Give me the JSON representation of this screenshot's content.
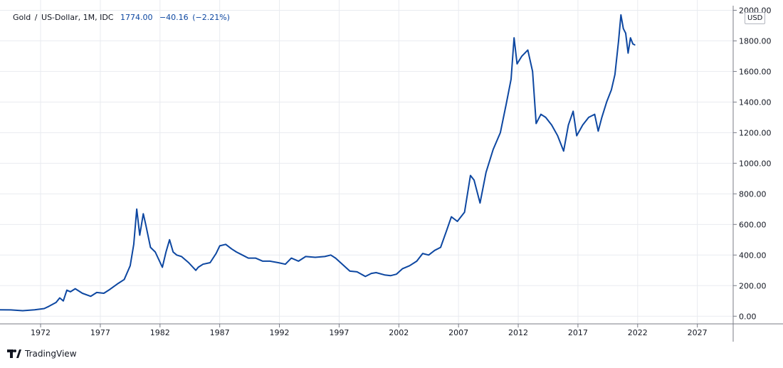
{
  "legend": {
    "symbol": "Gold",
    "separator": "/",
    "description": "US-Dollar, 1M, IDC",
    "last_price": "1774.00",
    "change": "−40.16",
    "change_pct": "(−2.21%)"
  },
  "currency_badge": "USD",
  "brand": {
    "name": "TradingView",
    "logo_icon": "tradingview-logo-icon"
  },
  "colors": {
    "line": "#0d47a1",
    "grid": "#e9ebf0",
    "text": "#131722",
    "axis": "#787b86"
  },
  "chart_data": {
    "type": "line",
    "title": "",
    "xlabel": "",
    "ylabel": "",
    "y_unit": "USD",
    "xlim": [
      1968.6,
      2030.0
    ],
    "ylim": [
      -50,
      2030
    ],
    "x_ticks": [
      1972,
      1977,
      1982,
      1987,
      1992,
      1997,
      2002,
      2007,
      2012,
      2017,
      2022,
      2027
    ],
    "x_tick_labels": [
      "1972",
      "1977",
      "1982",
      "1987",
      "1992",
      "1997",
      "2002",
      "2007",
      "2012",
      "2017",
      "2022",
      "2027"
    ],
    "y_ticks": [
      0,
      200,
      400,
      600,
      800,
      1000,
      1200,
      1400,
      1600,
      1800,
      2000
    ],
    "y_tick_labels": [
      "0.00",
      "200.00",
      "400.00",
      "600.00",
      "800.00",
      "1000.00",
      "1200.00",
      "1400.00",
      "1600.00",
      "1800.00",
      "2000.00"
    ],
    "grid": true,
    "series": [
      {
        "x": [
          1968.6,
          1969.5,
          1970.5,
          1971.5,
          1972.3,
          1972.7,
          1973.3,
          1973.6,
          1973.9,
          1974.2,
          1974.5,
          1974.9,
          1975.5,
          1976.2,
          1976.7,
          1977.3,
          1977.8,
          1978.5,
          1979.0,
          1979.5,
          1979.8,
          1980.05,
          1980.3,
          1980.6,
          1980.8,
          1981.2,
          1981.6,
          1982.2,
          1982.5,
          1982.8,
          1983.1,
          1983.4,
          1983.8,
          1984.4,
          1985.0,
          1985.2,
          1985.6,
          1986.2,
          1986.7,
          1987.0,
          1987.5,
          1988.0,
          1988.4,
          1988.9,
          1989.4,
          1990.0,
          1990.6,
          1991.2,
          1991.9,
          1992.5,
          1993.0,
          1993.6,
          1994.2,
          1995.0,
          1995.8,
          1996.3,
          1996.7,
          1997.4,
          1997.9,
          1998.5,
          1999.2,
          1999.7,
          2000.1,
          2000.8,
          2001.3,
          2001.8,
          2002.3,
          2002.9,
          2003.5,
          2004.0,
          2004.5,
          2005.0,
          2005.5,
          2006.0,
          2006.4,
          2006.9,
          2007.5,
          2008.0,
          2008.3,
          2008.8,
          2009.3,
          2009.9,
          2010.5,
          2011.0,
          2011.4,
          2011.65,
          2011.9,
          2012.3,
          2012.8,
          2013.2,
          2013.5,
          2013.9,
          2014.3,
          2014.8,
          2015.3,
          2015.8,
          2016.2,
          2016.6,
          2016.9,
          2017.4,
          2017.9,
          2018.4,
          2018.7,
          2019.0,
          2019.4,
          2019.8,
          2020.1,
          2020.4,
          2020.6,
          2020.8,
          2021.0,
          2021.2,
          2021.4,
          2021.6,
          2021.75
        ],
        "values": [
          42,
          41,
          36,
          42,
          50,
          65,
          90,
          120,
          100,
          170,
          160,
          180,
          150,
          130,
          155,
          150,
          175,
          215,
          240,
          330,
          470,
          700,
          530,
          670,
          600,
          450,
          420,
          320,
          420,
          500,
          420,
          400,
          390,
          350,
          300,
          320,
          340,
          350,
          410,
          460,
          470,
          440,
          420,
          400,
          380,
          380,
          360,
          360,
          350,
          340,
          380,
          360,
          390,
          385,
          390,
          400,
          380,
          330,
          295,
          290,
          260,
          280,
          285,
          270,
          265,
          275,
          310,
          330,
          360,
          410,
          400,
          430,
          450,
          560,
          650,
          620,
          680,
          920,
          890,
          740,
          940,
          1090,
          1200,
          1390,
          1550,
          1820,
          1650,
          1700,
          1740,
          1600,
          1260,
          1320,
          1300,
          1250,
          1180,
          1080,
          1250,
          1340,
          1180,
          1250,
          1300,
          1320,
          1210,
          1300,
          1400,
          1480,
          1580,
          1800,
          1970,
          1880,
          1850,
          1720,
          1820,
          1780,
          1774
        ]
      }
    ]
  }
}
